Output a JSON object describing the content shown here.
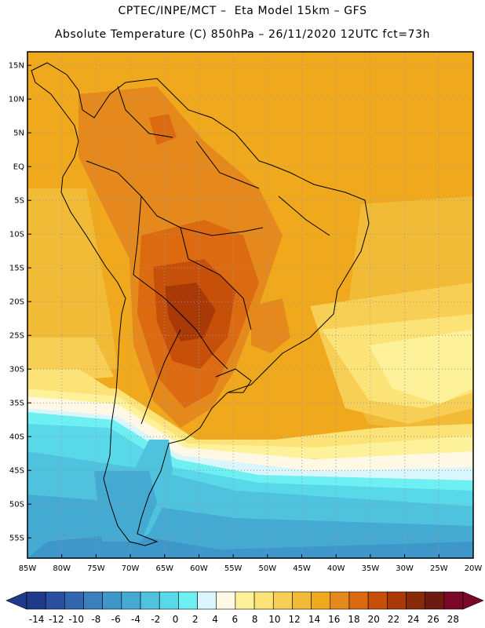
{
  "header": {
    "line1": "CPTEC/INPE/MCT –  Eta Model 15km – GFS",
    "line2": "Absolute Temperature (C) 850hPa – 26/11/2020 12UTC fct=73h"
  },
  "map": {
    "lat_labels": [
      "15N",
      "10N",
      "5N",
      "EQ",
      "5S",
      "10S",
      "15S",
      "20S",
      "25S",
      "30S",
      "35S",
      "40S",
      "45S",
      "50S",
      "55S"
    ],
    "lon_labels": [
      "85W",
      "80W",
      "75W",
      "70W",
      "65W",
      "60W",
      "55W",
      "50W",
      "45W",
      "40W",
      "35W",
      "30W",
      "25W",
      "20W"
    ],
    "grid": "dotted",
    "lat_range": [
      -58,
      17
    ],
    "lon_range": [
      -85,
      -20
    ]
  },
  "colorbar": {
    "labels": [
      "-14",
      "-12",
      "-10",
      "-8",
      "-6",
      "-4",
      "-2",
      "0",
      "2",
      "4",
      "6",
      "8",
      "10",
      "12",
      "14",
      "16",
      "18",
      "20",
      "22",
      "24",
      "26",
      "28"
    ],
    "colors": [
      "#1f3a8a",
      "#2a4f9e",
      "#3266ae",
      "#3a7fbe",
      "#3f96c8",
      "#45aad2",
      "#4fc2de",
      "#58d8e8",
      "#6ef0f2",
      "#d8f6fb",
      "#fff8e4",
      "#fdf29a",
      "#fbe377",
      "#f7cf55",
      "#f2bb37",
      "#f0a91c",
      "#e5891c",
      "#dc6a10",
      "#c64f0a",
      "#a93a08",
      "#862a08",
      "#6e1a10",
      "#7a0628"
    ]
  }
}
